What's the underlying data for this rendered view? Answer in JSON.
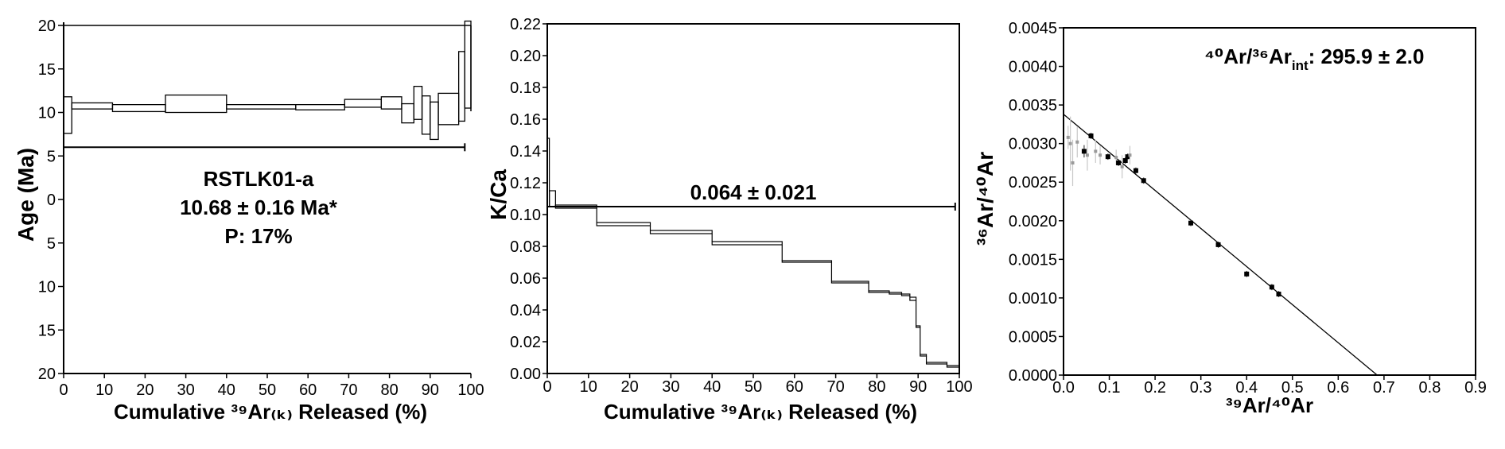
{
  "panels": {
    "age": {
      "ylabel": "Age (Ma)",
      "xlabel": "Cumulative ³⁹Ar₍ₖ₎ Released (%)",
      "sample": "RSTLK01-a",
      "plateau_age": "10.68 ± 0.16 Ma*",
      "probability": "P: 17%",
      "y_ticks_upper": [
        "20",
        "15",
        "10",
        "5",
        "0"
      ],
      "y_ticks_lower": [
        "5",
        "10",
        "15",
        "20"
      ],
      "x_ticks": [
        "0",
        "10",
        "20",
        "30",
        "40",
        "50",
        "60",
        "70",
        "80",
        "90",
        "100"
      ]
    },
    "kca": {
      "ylabel": "K/Ca",
      "xlabel": "Cumulative ³⁹Ar₍ₖ₎ Released (%)",
      "mean_label": "0.064 ± 0.021",
      "y_ticks": [
        "0.00",
        "0.02",
        "0.04",
        "0.06",
        "0.08",
        "0.10",
        "0.12",
        "0.14",
        "0.16",
        "0.18",
        "0.20",
        "0.22"
      ],
      "x_ticks": [
        "0",
        "10",
        "20",
        "30",
        "40",
        "50",
        "60",
        "70",
        "80",
        "90",
        "100"
      ]
    },
    "iso": {
      "ylabel": "³⁶Ar/⁴⁰Ar",
      "xlabel": "³⁹Ar/⁴⁰Ar",
      "intercept_label": "⁴⁰Ar/³⁶Ar",
      "intercept_label_sub": "int",
      "intercept_value": ": 295.9 ± 2.0",
      "y_ticks": [
        "0.0000",
        "0.0005",
        "0.0010",
        "0.0015",
        "0.0020",
        "0.0025",
        "0.0030",
        "0.0035",
        "0.0040",
        "0.0045"
      ],
      "x_ticks": [
        "0.0",
        "0.1",
        "0.2",
        "0.3",
        "0.4",
        "0.5",
        "0.6",
        "0.7",
        "0.8",
        "0.9"
      ]
    }
  },
  "colors": {
    "axis": "#000000",
    "negative_ticks": "#e00000",
    "isochron_error": "#c8c8c8"
  },
  "chart_data": [
    {
      "type": "step-spectrum",
      "name": "age-spectrum",
      "xlim": [
        0,
        100
      ],
      "ylim": [
        -20,
        20
      ],
      "plateau": {
        "value": 10.68,
        "uncertainty": 0.16,
        "x_range": [
          0,
          98.5
        ],
        "bar_level": 6
      },
      "steps": [
        {
          "x0": 0,
          "x1": 2,
          "lo": 7.6,
          "hi": 11.8
        },
        {
          "x0": 2,
          "x1": 12,
          "lo": 10.4,
          "hi": 11.1
        },
        {
          "x0": 12,
          "x1": 25,
          "lo": 10.1,
          "hi": 10.9
        },
        {
          "x0": 25,
          "x1": 40,
          "lo": 10.0,
          "hi": 12.0
        },
        {
          "x0": 40,
          "x1": 57,
          "lo": 10.4,
          "hi": 10.9
        },
        {
          "x0": 57,
          "x1": 69,
          "lo": 10.3,
          "hi": 10.9
        },
        {
          "x0": 69,
          "x1": 78,
          "lo": 10.6,
          "hi": 11.5
        },
        {
          "x0": 78,
          "x1": 83,
          "lo": 10.4,
          "hi": 11.8
        },
        {
          "x0": 83,
          "x1": 86,
          "lo": 8.8,
          "hi": 11.0
        },
        {
          "x0": 86,
          "x1": 88,
          "lo": 9.2,
          "hi": 13.0
        },
        {
          "x0": 88,
          "x1": 90,
          "lo": 7.5,
          "hi": 11.9
        },
        {
          "x0": 90,
          "x1": 92,
          "lo": 6.9,
          "hi": 11.2
        },
        {
          "x0": 92,
          "x1": 97,
          "lo": 8.6,
          "hi": 12.2
        },
        {
          "x0": 97,
          "x1": 98.5,
          "lo": 9.0,
          "hi": 17.0
        },
        {
          "x0": 98.5,
          "x1": 100,
          "lo": 10.5,
          "hi": 20.5
        }
      ]
    },
    {
      "type": "step-spectrum",
      "name": "k-ca-spectrum",
      "xlim": [
        0,
        100
      ],
      "ylim": [
        0,
        0.22
      ],
      "mean": {
        "value": 0.064,
        "uncertainty": 0.021,
        "x_range": [
          0,
          99
        ],
        "bar_level": 0.105
      },
      "steps": [
        {
          "x0": 0,
          "x1": 0.5,
          "lo": 0.105,
          "hi": 0.148
        },
        {
          "x0": 0.5,
          "x1": 2,
          "lo": 0.105,
          "hi": 0.115
        },
        {
          "x0": 2,
          "x1": 12,
          "lo": 0.104,
          "hi": 0.106
        },
        {
          "x0": 12,
          "x1": 25,
          "lo": 0.093,
          "hi": 0.095
        },
        {
          "x0": 25,
          "x1": 40,
          "lo": 0.088,
          "hi": 0.09
        },
        {
          "x0": 40,
          "x1": 57,
          "lo": 0.081,
          "hi": 0.083
        },
        {
          "x0": 57,
          "x1": 69,
          "lo": 0.07,
          "hi": 0.071
        },
        {
          "x0": 69,
          "x1": 78,
          "lo": 0.057,
          "hi": 0.058
        },
        {
          "x0": 78,
          "x1": 83,
          "lo": 0.051,
          "hi": 0.052
        },
        {
          "x0": 83,
          "x1": 86,
          "lo": 0.05,
          "hi": 0.051
        },
        {
          "x0": 86,
          "x1": 88,
          "lo": 0.049,
          "hi": 0.05
        },
        {
          "x0": 88,
          "x1": 89.5,
          "lo": 0.046,
          "hi": 0.048
        },
        {
          "x0": 89.5,
          "x1": 90.5,
          "lo": 0.029,
          "hi": 0.03
        },
        {
          "x0": 90.5,
          "x1": 92,
          "lo": 0.011,
          "hi": 0.012
        },
        {
          "x0": 92,
          "x1": 97,
          "lo": 0.006,
          "hi": 0.007
        },
        {
          "x0": 97,
          "x1": 100,
          "lo": 0.004,
          "hi": 0.005
        }
      ]
    },
    {
      "type": "scatter",
      "name": "inverse-isochron",
      "xlim": [
        0,
        0.9
      ],
      "ylim": [
        0,
        0.0045
      ],
      "fit_line": [
        [
          0,
          0.00338
        ],
        [
          0.685,
          0
        ]
      ],
      "points": [
        {
          "x": 0.01,
          "y": 0.00308,
          "dy": 0.00015,
          "filled": false
        },
        {
          "x": 0.015,
          "y": 0.003,
          "dy": 0.00035,
          "filled": false
        },
        {
          "x": 0.02,
          "y": 0.00275,
          "dy": 0.0003,
          "filled": false
        },
        {
          "x": 0.03,
          "y": 0.00302,
          "dy": 0.0002,
          "filled": false
        },
        {
          "x": 0.045,
          "y": 0.0029,
          "dy": 8e-05,
          "filled": true
        },
        {
          "x": 0.052,
          "y": 0.00285,
          "dy": 0.0002,
          "filled": false
        },
        {
          "x": 0.06,
          "y": 0.0031,
          "dy": 4e-05,
          "filled": true
        },
        {
          "x": 0.07,
          "y": 0.0029,
          "dy": 0.00015,
          "filled": false
        },
        {
          "x": 0.08,
          "y": 0.00285,
          "dy": 0.00012,
          "filled": false
        },
        {
          "x": 0.097,
          "y": 0.00283,
          "dy": 4e-05,
          "filled": true
        },
        {
          "x": 0.115,
          "y": 0.00282,
          "dy": 0.0001,
          "filled": false
        },
        {
          "x": 0.12,
          "y": 0.00275,
          "dy": 4e-05,
          "filled": true
        },
        {
          "x": 0.128,
          "y": 0.0027,
          "dy": 0.00015,
          "filled": false
        },
        {
          "x": 0.135,
          "y": 0.00278,
          "dy": 4e-05,
          "filled": true
        },
        {
          "x": 0.14,
          "y": 0.00283,
          "dy": 4e-05,
          "filled": true
        },
        {
          "x": 0.145,
          "y": 0.00285,
          "dy": 0.00012,
          "filled": false
        },
        {
          "x": 0.158,
          "y": 0.00265,
          "dy": 4e-05,
          "filled": true
        },
        {
          "x": 0.175,
          "y": 0.00252,
          "dy": 4e-05,
          "filled": true
        },
        {
          "x": 0.278,
          "y": 0.00197,
          "dy": 4e-05,
          "filled": true
        },
        {
          "x": 0.338,
          "y": 0.00169,
          "dy": 4e-05,
          "filled": true
        },
        {
          "x": 0.4,
          "y": 0.00131,
          "dy": 4e-05,
          "filled": true
        },
        {
          "x": 0.455,
          "y": 0.00114,
          "dy": 4e-05,
          "filled": true
        },
        {
          "x": 0.47,
          "y": 0.00105,
          "dy": 4e-05,
          "filled": true
        }
      ]
    }
  ]
}
